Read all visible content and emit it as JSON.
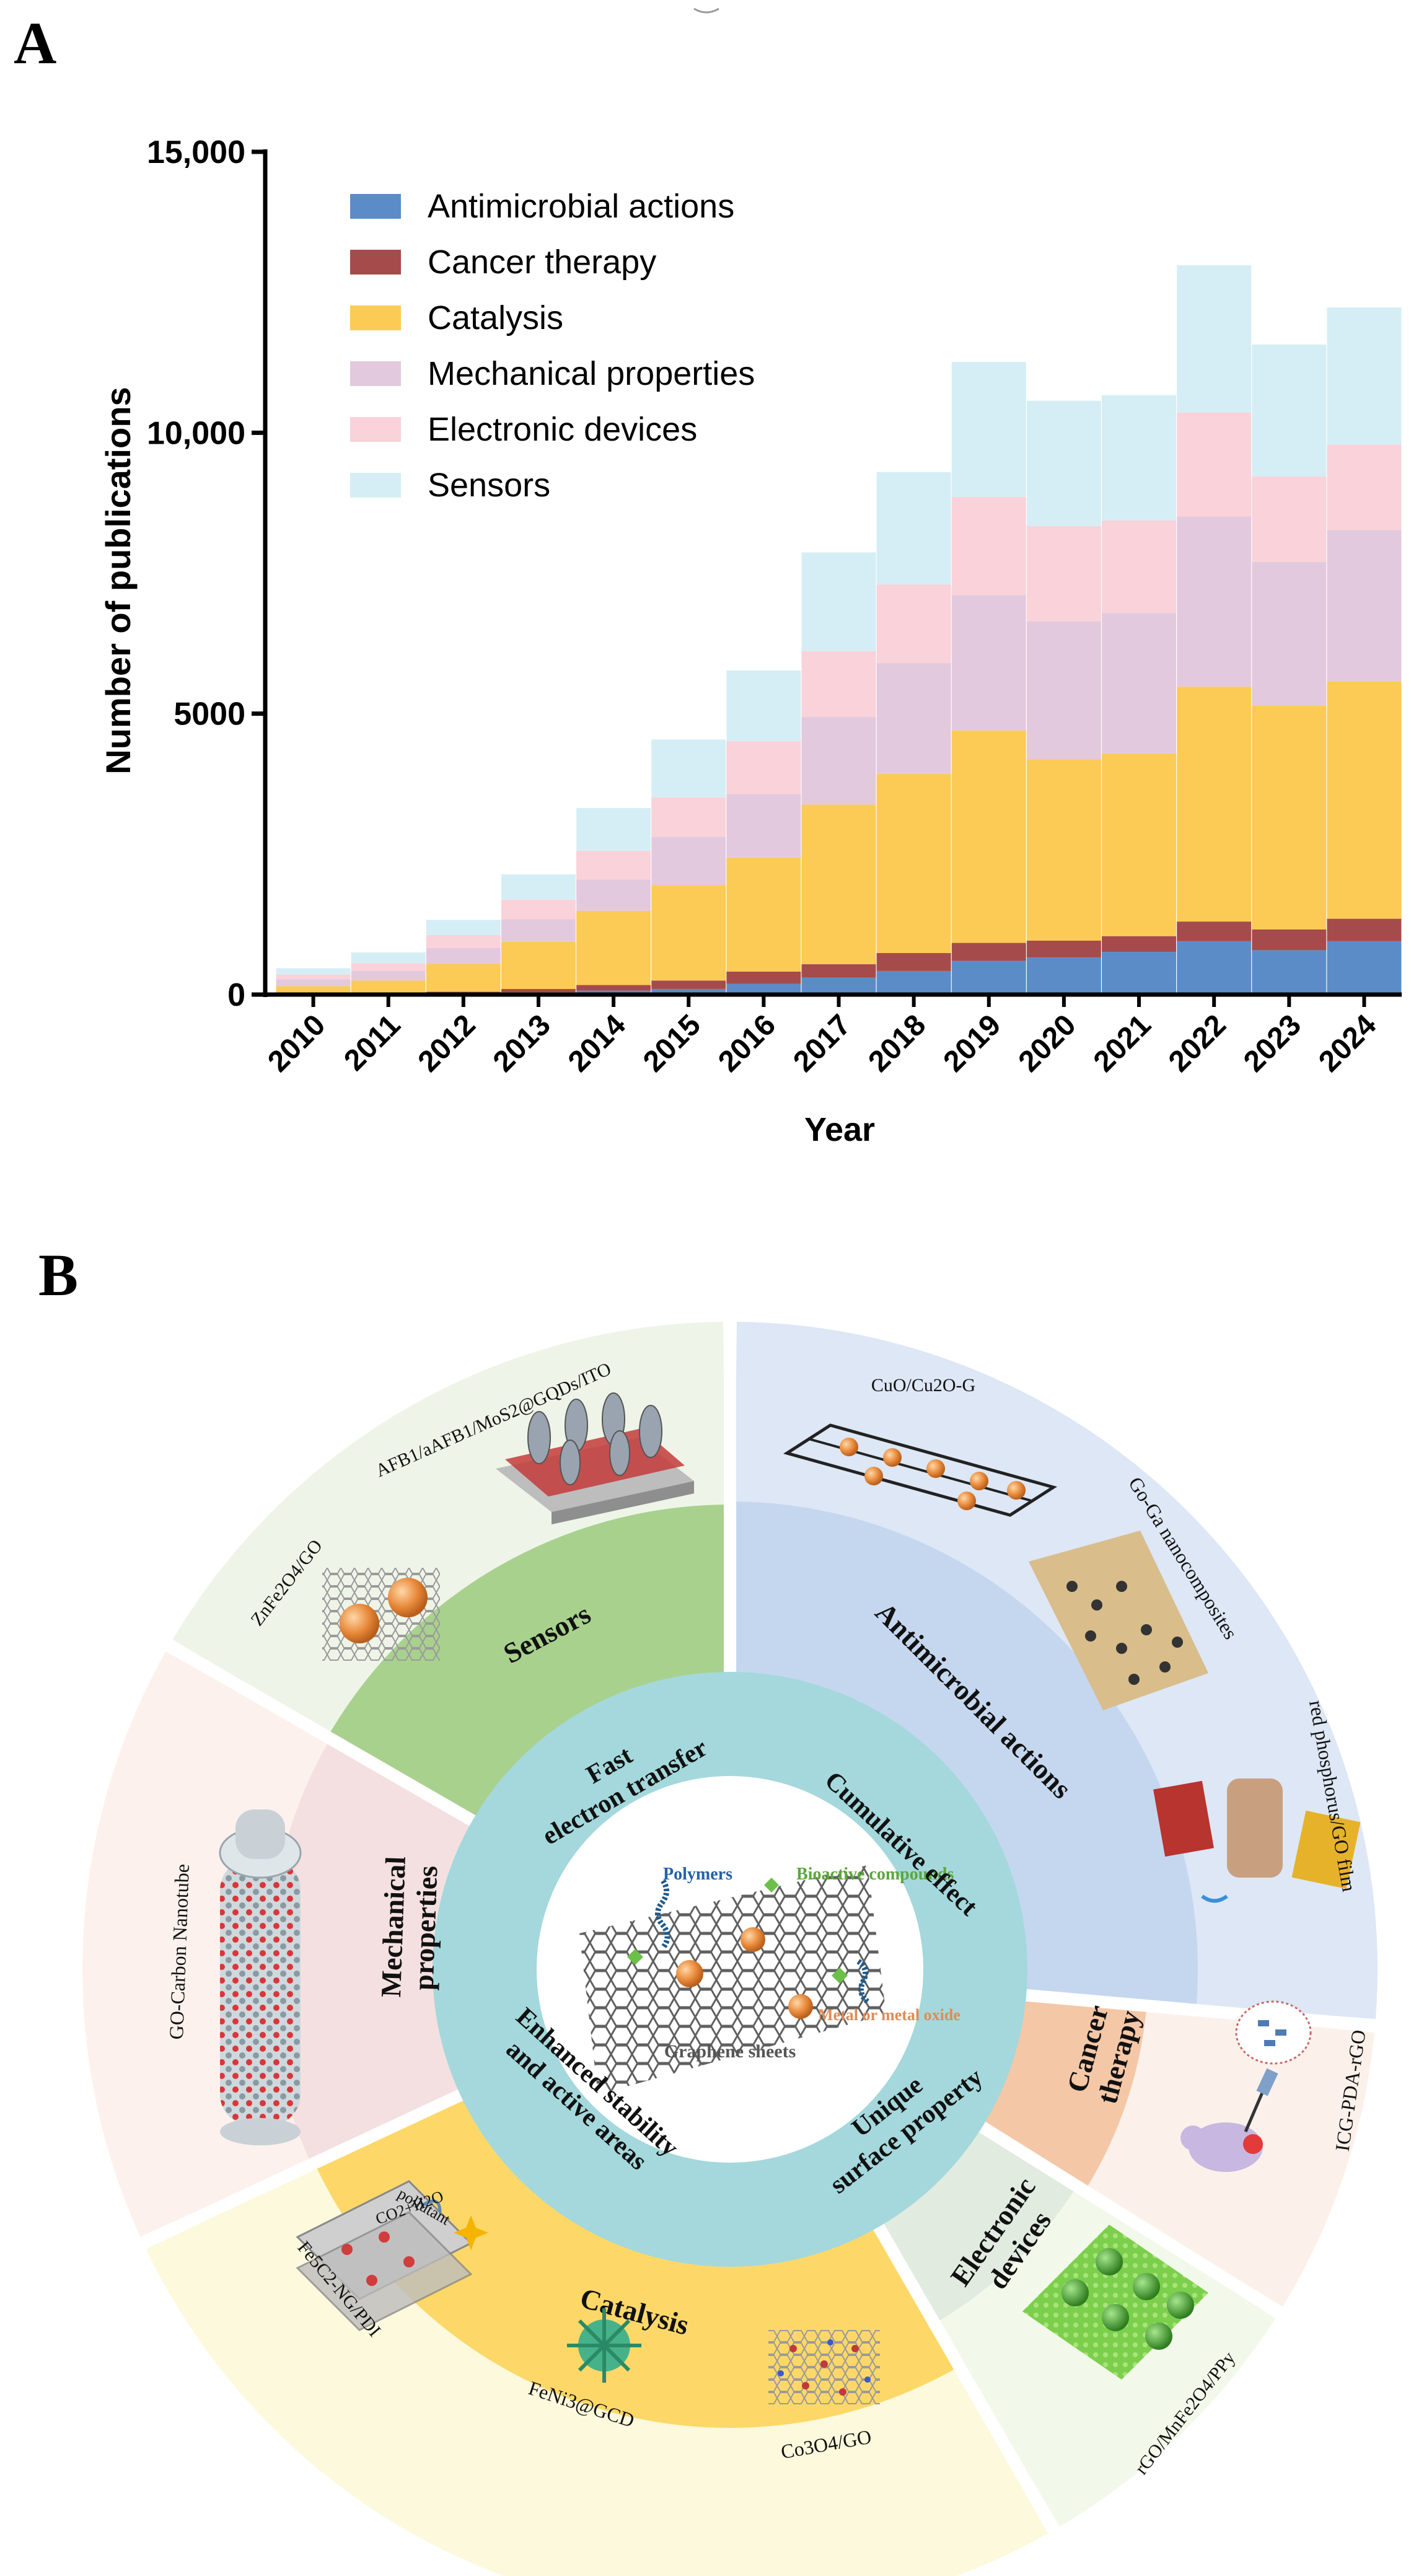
{
  "panel_a": {
    "label": "A",
    "chart_data": {
      "type": "bar",
      "stacked": true,
      "title": "",
      "xlabel": "Year",
      "ylabel": "Number of publications",
      "ylim": [
        0,
        15000
      ],
      "y_ticks": [
        0,
        5000,
        10000,
        15000
      ],
      "y_tick_labels": [
        "0",
        "5000",
        "10,000",
        "15,000"
      ],
      "categories": [
        "2010",
        "2011",
        "2012",
        "2013",
        "2014",
        "2015",
        "2016",
        "2017",
        "2018",
        "2019",
        "2020",
        "2021",
        "2022",
        "2023",
        "2024"
      ],
      "legend_position": "top-left",
      "series": [
        {
          "name": "Antimicrobial actions",
          "color": "#5b8cc8",
          "values": [
            5,
            10,
            20,
            40,
            70,
            100,
            190,
            300,
            420,
            600,
            660,
            760,
            950,
            790,
            950
          ]
        },
        {
          "name": "Cancer therapy",
          "color": "#a64b4b",
          "values": [
            5,
            10,
            30,
            60,
            100,
            150,
            220,
            240,
            320,
            320,
            300,
            280,
            350,
            370,
            400
          ]
        },
        {
          "name": "Catalysis",
          "color": "#fbcb55",
          "values": [
            140,
            230,
            500,
            840,
            1320,
            1700,
            2030,
            2840,
            3190,
            3780,
            3230,
            3250,
            4180,
            3980,
            4220
          ]
        },
        {
          "name": "Mechanical properties",
          "color": "#e3c9de",
          "values": [
            120,
            170,
            280,
            400,
            560,
            860,
            1130,
            1560,
            1970,
            2410,
            2450,
            2500,
            3030,
            2560,
            2700
          ]
        },
        {
          "name": "Electronic devices",
          "color": "#f9d2da",
          "values": [
            90,
            140,
            230,
            350,
            510,
            700,
            940,
            1170,
            1400,
            1750,
            1700,
            1650,
            1850,
            1520,
            1520
          ]
        },
        {
          "name": "Sensors",
          "color": "#d5eef5",
          "values": [
            110,
            190,
            270,
            450,
            760,
            1030,
            1260,
            1760,
            2000,
            2400,
            2230,
            2230,
            2620,
            2350,
            2440
          ]
        }
      ]
    }
  },
  "panel_b": {
    "label": "B",
    "core": {
      "legend": {
        "polymers": "Polymers",
        "bioactive": "Bioactive compounds",
        "metal": "Metal or metal oxide",
        "graphene": "Graphene  sheets"
      }
    },
    "properties": [
      {
        "id": "fast-electron-transfer",
        "text": "Fast electron transfer"
      },
      {
        "id": "cumulative-effect",
        "text": "Cumulative effect"
      },
      {
        "id": "unique-surface-property",
        "text": "Unique surface property"
      },
      {
        "id": "enhanced-stability",
        "text": "Enhanced stability and active areas"
      }
    ],
    "applications": [
      {
        "id": "sensors",
        "label": "Sensors",
        "color": "#a9d18e",
        "outer_color": "#eef5e8"
      },
      {
        "id": "antimicrobial-actions",
        "label": "Antimicrobial actions",
        "color": "#c5d7ef",
        "outer_color": "#dde7f5"
      },
      {
        "id": "cancer-therapy",
        "label": "Cancer therapy",
        "color": "#f4c7a6",
        "outer_color": "#fcf1ea"
      },
      {
        "id": "electronic-devices",
        "label": "Electronic devices",
        "color": "#e1ebe0",
        "outer_color": "#f3f9ea"
      },
      {
        "id": "catalysis",
        "label": "Catalysis",
        "color": "#fdd868",
        "outer_color": "#fcf9dd"
      },
      {
        "id": "mechanical-properties",
        "label": "Mechanical properties",
        "color": "#f4e0e0",
        "outer_color": "#fcf1ed"
      }
    ],
    "examples": [
      {
        "id": "afb1",
        "text": "AFB1/aAFB1/MoS2@GQDs/ITO"
      },
      {
        "id": "znfe2o4",
        "text": "ZnFe2O4/GO"
      },
      {
        "id": "cuo",
        "text": "CuO/Cu2O-G"
      },
      {
        "id": "go-ga",
        "text": "Go-Ga nanocomposites"
      },
      {
        "id": "red-phosphorus",
        "text": "red phosphorus/GO film"
      },
      {
        "id": "icg",
        "text": "ICG-PDA-rGO"
      },
      {
        "id": "rgo-mnfe",
        "text": "rGO/MnFe2O4/PPy"
      },
      {
        "id": "co3o4",
        "text": "Co3O4/GO"
      },
      {
        "id": "feni3",
        "text": "FeNi3@GCD"
      },
      {
        "id": "feco",
        "text": "Fe5C2-NG/PDI"
      },
      {
        "id": "go-cnt",
        "text": "GO-Carbon Nanotube"
      }
    ],
    "catalysis_inset": {
      "pollutant": "pollutant",
      "products": "CO2+H2O"
    }
  }
}
